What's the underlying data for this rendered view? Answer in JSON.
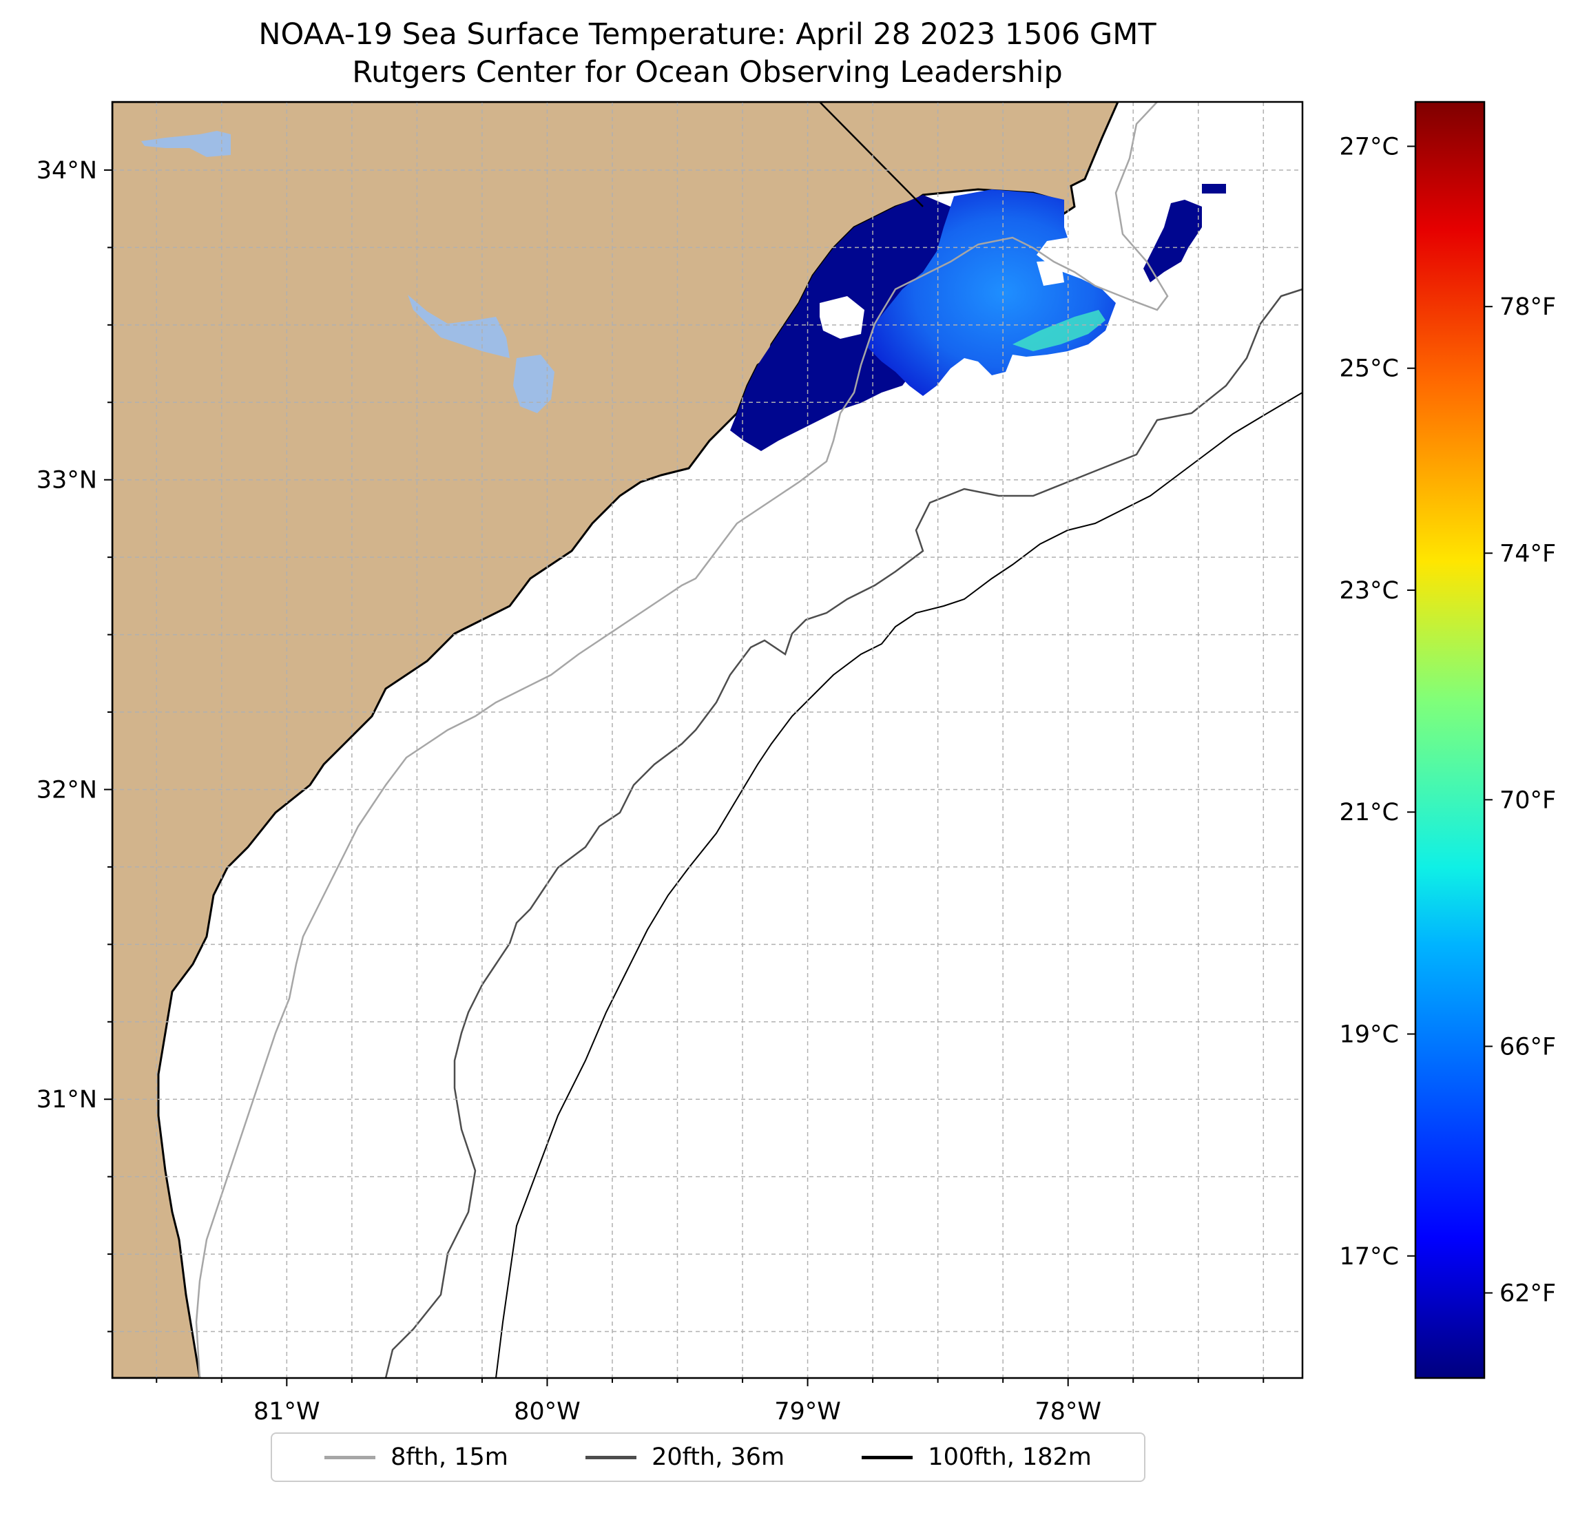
{
  "title_line1": "NOAA-19 Sea Surface Temperature: April 28 2023 1506 GMT",
  "title_line2": "Rutgers Center for Ocean Observing Leadership",
  "colors": {
    "land": "#d2b48c",
    "lakes": "#9ebde6",
    "ocean": "#ffffff",
    "contour_8fth": "#a6a6a6",
    "contour_20fth": "#4d4d4d",
    "contour_100fth": "#000000"
  },
  "map": {
    "lon_range": [
      -81.67,
      -77.1
    ],
    "lat_range": [
      30.1,
      34.22
    ],
    "lon_ticks": [
      {
        "value": -81,
        "label": "81°W"
      },
      {
        "value": -80,
        "label": "80°W"
      },
      {
        "value": -79,
        "label": "79°W"
      },
      {
        "value": -78,
        "label": "78°W"
      }
    ],
    "lat_ticks": [
      {
        "value": 34,
        "label": "34°N"
      },
      {
        "value": 33,
        "label": "33°N"
      },
      {
        "value": 32,
        "label": "32°N"
      },
      {
        "value": 31,
        "label": "31°N"
      }
    ]
  },
  "colorbar": {
    "colormap": "jet",
    "range_c": [
      15.9,
      27.4
    ],
    "celsius_ticks": [
      {
        "value": 17,
        "label": "17°C"
      },
      {
        "value": 19,
        "label": "19°C"
      },
      {
        "value": 21,
        "label": "21°C"
      },
      {
        "value": 23,
        "label": "23°C"
      },
      {
        "value": 25,
        "label": "25°C"
      },
      {
        "value": 27,
        "label": "27°C"
      }
    ],
    "fahrenheit_ticks": [
      {
        "value": 62,
        "label": "62°F"
      },
      {
        "value": 66,
        "label": "66°F"
      },
      {
        "value": 70,
        "label": "70°F"
      },
      {
        "value": 74,
        "label": "74°F"
      },
      {
        "value": 78,
        "label": "78°F"
      }
    ]
  },
  "legend": [
    {
      "label": "8fth, 15m",
      "color": "#a6a6a6"
    },
    {
      "label": "20fth, 36m",
      "color": "#4d4d4d"
    },
    {
      "label": "100fth, 182m",
      "color": "#000000"
    }
  ]
}
